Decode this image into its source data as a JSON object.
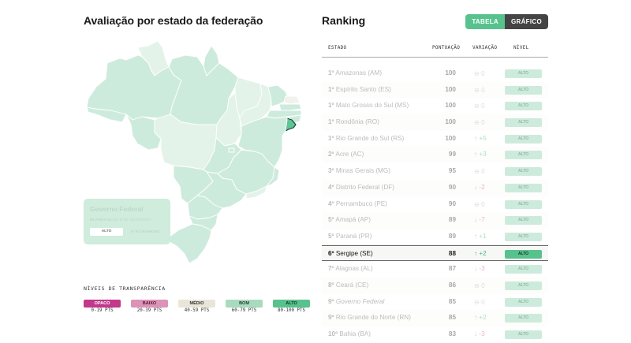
{
  "left": {
    "title": "Avaliação por estado da federação",
    "map": {
      "selected_state": "SE",
      "colors": {
        "alto": "#cdebdc",
        "light": "#e3f3ea",
        "gray": "#f1f1ee",
        "selected": "#5cc594"
      }
    },
    "gov_card": {
      "name": "Governo Federal",
      "points": "85 PONTOS",
      "date": "EM 8 DE SETEMBRO",
      "level": "ALTO",
      "rank": "9º NO RANKING"
    },
    "legend": {
      "title": "NÍVEIS DE TRANSPARÊNCIA",
      "items": [
        {
          "label": "OPACO",
          "range": "0-19 PTS",
          "color": "#c2388a",
          "text_color": "#ffffff"
        },
        {
          "label": "BAIXO",
          "range": "20-39 PTS",
          "color": "#dc93b6",
          "text_color": "#5a1a3a"
        },
        {
          "label": "MÉDIO",
          "range": "40-59 PTS",
          "color": "#e9e5d8",
          "text_color": "#333333"
        },
        {
          "label": "BOM",
          "range": "60-79 PTS",
          "color": "#a8dbbd",
          "text_color": "#1f3a2c"
        },
        {
          "label": "ALTO",
          "range": "80-100 PTS",
          "color": "#57c28e",
          "text_color": "#17331f"
        }
      ]
    }
  },
  "right": {
    "title": "Ranking",
    "toggle": {
      "options": [
        {
          "label": "TABELA",
          "active": true
        },
        {
          "label": "GRÁFICO",
          "active": false
        }
      ]
    },
    "columns": {
      "state": "ESTADO",
      "score": "PONTUAÇÃO",
      "variation": "VARIAÇÃO",
      "level": "NÍVEL"
    },
    "rows": [
      {
        "rank": "1º",
        "name": "Amazonas (AM)",
        "score": "100",
        "var_icon": "⊖",
        "var": "0",
        "trend": "zero",
        "level": "ALTO"
      },
      {
        "rank": "1º",
        "name": "Espírito Santo (ES)",
        "score": "100",
        "var_icon": "⊖",
        "var": "0",
        "trend": "zero",
        "level": "ALTO"
      },
      {
        "rank": "1º",
        "name": "Mato Grosso do Sul (MS)",
        "score": "100",
        "var_icon": "⊖",
        "var": "0",
        "trend": "zero",
        "level": "ALTO"
      },
      {
        "rank": "1º",
        "name": "Rondônia (RO)",
        "score": "100",
        "var_icon": "⊖",
        "var": "0",
        "trend": "zero",
        "level": "ALTO"
      },
      {
        "rank": "1º",
        "name": "Rio Grande do Sul (RS)",
        "score": "100",
        "var_icon": "↑",
        "var": "+5",
        "trend": "up",
        "level": "ALTO"
      },
      {
        "rank": "2º",
        "name": "Acre (AC)",
        "score": "99",
        "var_icon": "↑",
        "var": "+3",
        "trend": "up",
        "level": "ALTO"
      },
      {
        "rank": "3º",
        "name": "Minas Gerais (MG)",
        "score": "95",
        "var_icon": "⊖",
        "var": "0",
        "trend": "zero",
        "level": "ALTO"
      },
      {
        "rank": "4º",
        "name": "Distrito Federal (DF)",
        "score": "90",
        "var_icon": "↓",
        "var": "-2",
        "trend": "down",
        "level": "ALTO"
      },
      {
        "rank": "4º",
        "name": "Pernambuco (PE)",
        "score": "90",
        "var_icon": "⊖",
        "var": "0",
        "trend": "zero",
        "level": "ALTO"
      },
      {
        "rank": "5º",
        "name": "Amapá (AP)",
        "score": "89",
        "var_icon": "↓",
        "var": "-7",
        "trend": "down",
        "level": "ALTO"
      },
      {
        "rank": "5º",
        "name": "Paraná (PR)",
        "score": "89",
        "var_icon": "↑",
        "var": "+1",
        "trend": "up",
        "level": "ALTO"
      },
      {
        "rank": "6º",
        "name": "Sergipe (SE)",
        "score": "88",
        "var_icon": "↑",
        "var": "+2",
        "trend": "up",
        "level": "ALTO",
        "selected": true
      },
      {
        "rank": "7º",
        "name": "Alagoas (AL)",
        "score": "87",
        "var_icon": "↓",
        "var": "-3",
        "trend": "down",
        "level": "ALTO"
      },
      {
        "rank": "8º",
        "name": "Ceará (CE)",
        "score": "86",
        "var_icon": "⊖",
        "var": "0",
        "trend": "zero",
        "level": "ALTO"
      },
      {
        "rank": "9º",
        "name": "Governo Federal",
        "score": "85",
        "var_icon": "⊖",
        "var": "0",
        "trend": "zero",
        "level": "ALTO",
        "italic": true
      },
      {
        "rank": "9º",
        "name": "Rio Grande do Norte (RN)",
        "score": "85",
        "var_icon": "↑",
        "var": "+2",
        "trend": "up",
        "level": "ALTO"
      },
      {
        "rank": "10º",
        "name": "Bahia (BA)",
        "score": "83",
        "var_icon": "↓",
        "var": "-3",
        "trend": "down",
        "level": "ALTO"
      }
    ]
  }
}
